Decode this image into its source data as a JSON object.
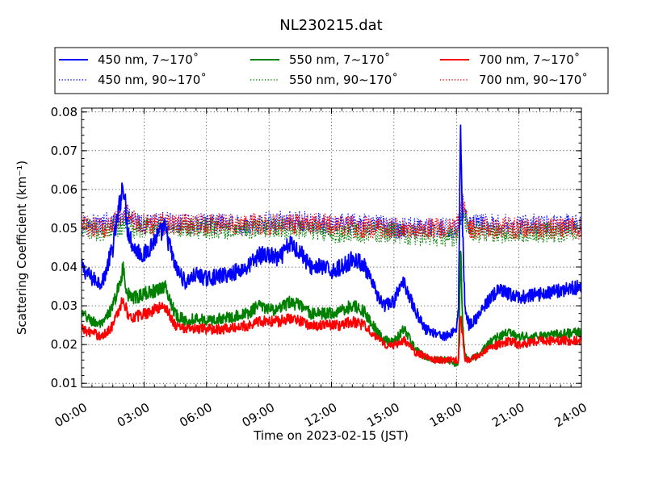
{
  "chart_data": {
    "type": "line",
    "title": "NL230215.dat",
    "xlabel": "Time on 2023-02-15 (JST)",
    "ylabel": "Scattering Coefficient (km⁻¹)",
    "xlim": [
      0,
      24
    ],
    "ylim": [
      0.009,
      0.081
    ],
    "xticks": [
      0,
      3,
      6,
      9,
      12,
      15,
      18,
      21,
      24
    ],
    "xtick_labels": [
      "00:00",
      "03:00",
      "06:00",
      "09:00",
      "12:00",
      "15:00",
      "18:00",
      "21:00",
      "24:00"
    ],
    "yticks": [
      0.01,
      0.02,
      0.03,
      0.04,
      0.05,
      0.06,
      0.07,
      0.08
    ],
    "ytick_labels": [
      "0.01",
      "0.02",
      "0.03",
      "0.04",
      "0.05",
      "0.06",
      "0.07",
      "0.08"
    ],
    "grid": true,
    "legend_position": "top, above plot",
    "series": [
      {
        "name": "450 nm, 7∼170˚",
        "color": "#0000ff",
        "style": "solid",
        "x": [
          0,
          0.5,
          1,
          1.5,
          1.8,
          2.0,
          2.2,
          2.5,
          3,
          3.5,
          4.0,
          4.5,
          5,
          5.5,
          6,
          7,
          8,
          8.5,
          9,
          9.5,
          10,
          10.5,
          11,
          11.5,
          12,
          12.5,
          13,
          13.5,
          14,
          14.5,
          15,
          15.2,
          15.5,
          16,
          16.5,
          17,
          17.5,
          18,
          18.1,
          18.2,
          18.3,
          18.4,
          18.6,
          19,
          19.5,
          20,
          20.5,
          21,
          22,
          23,
          24
        ],
        "y": [
          0.04,
          0.037,
          0.036,
          0.045,
          0.055,
          0.062,
          0.05,
          0.045,
          0.043,
          0.047,
          0.05,
          0.04,
          0.036,
          0.038,
          0.037,
          0.038,
          0.04,
          0.043,
          0.043,
          0.042,
          0.046,
          0.044,
          0.04,
          0.04,
          0.039,
          0.04,
          0.042,
          0.041,
          0.035,
          0.03,
          0.031,
          0.034,
          0.036,
          0.029,
          0.024,
          0.023,
          0.022,
          0.024,
          0.03,
          0.077,
          0.05,
          0.03,
          0.025,
          0.027,
          0.031,
          0.034,
          0.033,
          0.032,
          0.033,
          0.034,
          0.035
        ]
      },
      {
        "name": "550 nm, 7∼170˚",
        "color": "#008000",
        "style": "solid",
        "x": [
          0,
          0.5,
          1,
          1.5,
          1.8,
          2.0,
          2.2,
          2.5,
          3,
          3.5,
          4.0,
          4.5,
          5,
          5.5,
          6,
          7,
          8,
          8.5,
          9,
          9.5,
          10,
          10.5,
          11,
          11.5,
          12,
          12.5,
          13,
          13.5,
          14,
          14.5,
          15,
          15.2,
          15.5,
          16,
          16.5,
          17,
          17.5,
          18,
          18.1,
          18.2,
          18.3,
          18.4,
          18.6,
          19,
          19.5,
          20,
          20.5,
          21,
          22,
          23,
          24
        ],
        "y": [
          0.028,
          0.026,
          0.025,
          0.03,
          0.035,
          0.04,
          0.033,
          0.032,
          0.033,
          0.034,
          0.035,
          0.028,
          0.026,
          0.027,
          0.026,
          0.027,
          0.028,
          0.03,
          0.029,
          0.029,
          0.031,
          0.03,
          0.028,
          0.028,
          0.028,
          0.029,
          0.03,
          0.029,
          0.025,
          0.021,
          0.021,
          0.022,
          0.024,
          0.019,
          0.017,
          0.016,
          0.016,
          0.015,
          0.015,
          0.045,
          0.025,
          0.017,
          0.016,
          0.017,
          0.02,
          0.022,
          0.023,
          0.022,
          0.022,
          0.023,
          0.023
        ]
      },
      {
        "name": "700 nm, 7∼170˚",
        "color": "#ff0000",
        "style": "solid",
        "x": [
          0,
          0.5,
          1,
          1.5,
          1.8,
          2.0,
          2.2,
          2.5,
          3,
          3.5,
          4.0,
          4.5,
          5,
          5.5,
          6,
          7,
          8,
          8.5,
          9,
          9.5,
          10,
          10.5,
          11,
          11.5,
          12,
          12.5,
          13,
          13.5,
          14,
          14.5,
          15,
          15.2,
          15.5,
          16,
          16.5,
          17,
          17.5,
          18,
          18.1,
          18.2,
          18.3,
          18.4,
          18.6,
          19,
          19.5,
          20,
          20.5,
          21,
          22,
          23,
          24
        ],
        "y": [
          0.024,
          0.023,
          0.022,
          0.025,
          0.029,
          0.032,
          0.028,
          0.027,
          0.028,
          0.029,
          0.03,
          0.025,
          0.024,
          0.024,
          0.024,
          0.024,
          0.025,
          0.026,
          0.026,
          0.026,
          0.027,
          0.026,
          0.025,
          0.025,
          0.025,
          0.025,
          0.026,
          0.025,
          0.023,
          0.02,
          0.02,
          0.02,
          0.021,
          0.018,
          0.017,
          0.016,
          0.016,
          0.016,
          0.016,
          0.028,
          0.022,
          0.016,
          0.016,
          0.017,
          0.019,
          0.02,
          0.021,
          0.02,
          0.021,
          0.021,
          0.021
        ]
      },
      {
        "name": "450 nm, 90∼170˚",
        "color": "#0000ff",
        "style": "dotted",
        "x": [
          0,
          1,
          2,
          2.2,
          2.5,
          3,
          4,
          5,
          6,
          8,
          10,
          12,
          14,
          15,
          16,
          17,
          18,
          18.3,
          18.6,
          19,
          20,
          21,
          22,
          23,
          24
        ],
        "y": [
          0.051,
          0.051,
          0.053,
          0.054,
          0.052,
          0.051,
          0.052,
          0.051,
          0.051,
          0.051,
          0.052,
          0.051,
          0.051,
          0.05,
          0.05,
          0.05,
          0.05,
          0.056,
          0.051,
          0.051,
          0.051,
          0.051,
          0.051,
          0.051,
          0.051
        ]
      },
      {
        "name": "550 nm, 90∼170˚",
        "color": "#008000",
        "style": "dotted",
        "x": [
          0,
          1,
          2,
          2.2,
          2.5,
          3,
          4,
          5,
          6,
          8,
          10,
          12,
          14,
          15,
          16,
          17,
          18,
          18.3,
          18.6,
          19,
          20,
          21,
          22,
          23,
          24
        ],
        "y": [
          0.05,
          0.049,
          0.051,
          0.052,
          0.05,
          0.05,
          0.05,
          0.05,
          0.05,
          0.05,
          0.05,
          0.049,
          0.049,
          0.049,
          0.048,
          0.048,
          0.048,
          0.055,
          0.049,
          0.049,
          0.049,
          0.049,
          0.049,
          0.049,
          0.049
        ]
      },
      {
        "name": "700 nm, 90∼170˚",
        "color": "#ff0000",
        "style": "dotted",
        "x": [
          0,
          1,
          2,
          2.2,
          2.5,
          3,
          4,
          5,
          6,
          8,
          10,
          12,
          14,
          15,
          16,
          17,
          18,
          18.3,
          18.6,
          19,
          20,
          21,
          22,
          23,
          24
        ],
        "y": [
          0.051,
          0.05,
          0.053,
          0.055,
          0.052,
          0.051,
          0.051,
          0.051,
          0.051,
          0.051,
          0.051,
          0.051,
          0.05,
          0.05,
          0.05,
          0.05,
          0.05,
          0.057,
          0.05,
          0.05,
          0.05,
          0.05,
          0.05,
          0.05,
          0.05
        ]
      }
    ]
  }
}
